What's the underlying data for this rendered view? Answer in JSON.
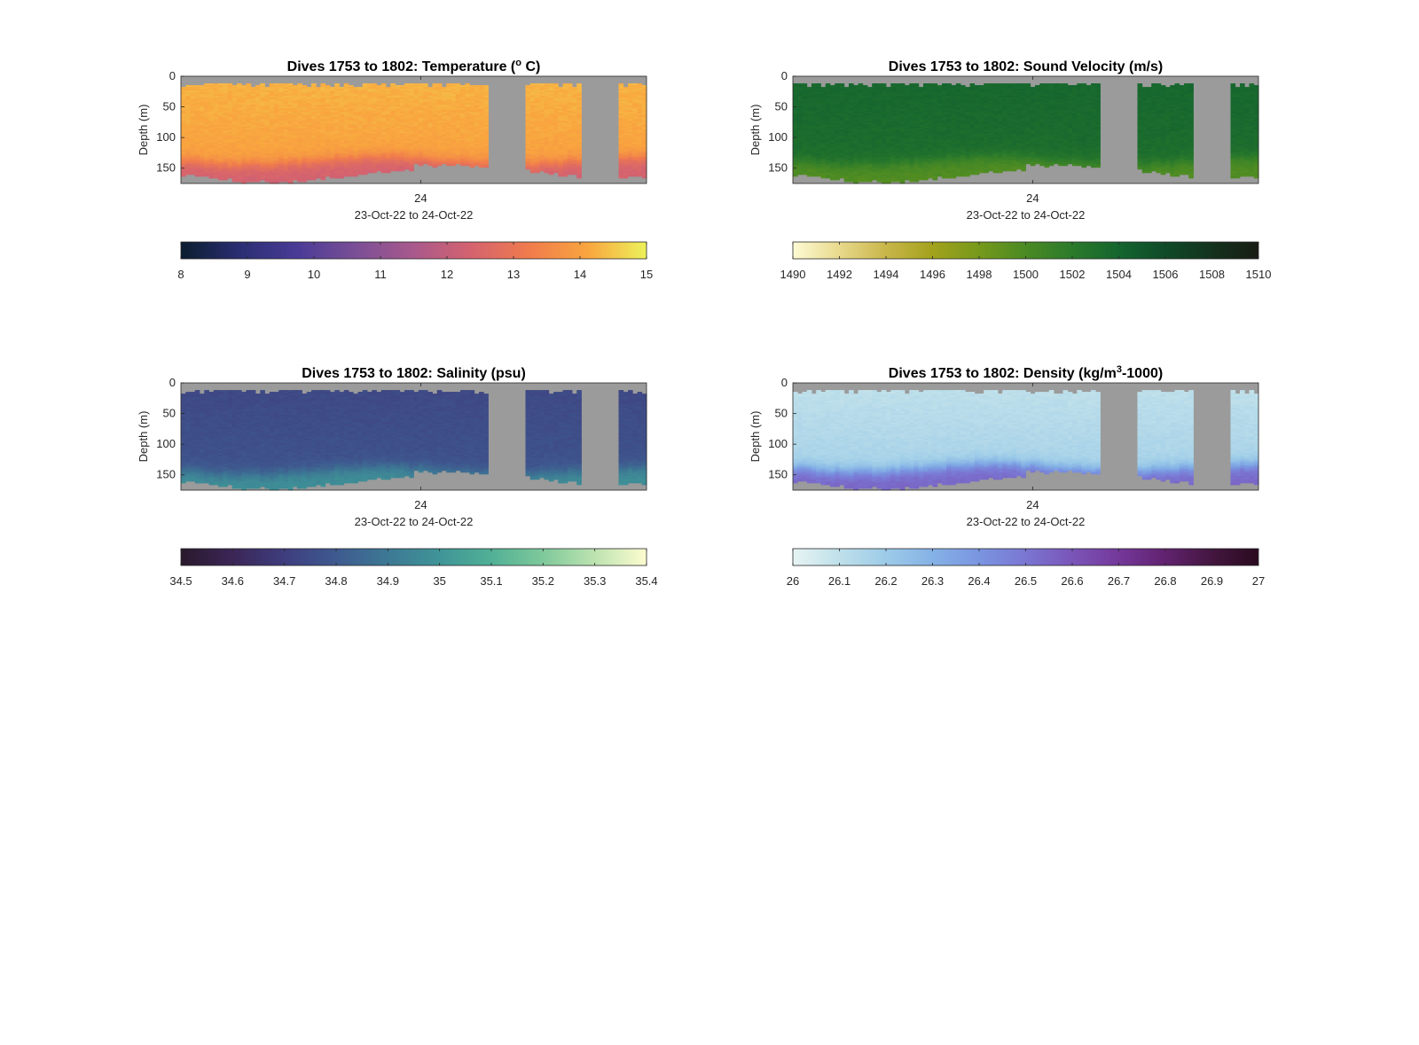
{
  "chart_data": [
    {
      "type": "heatmap",
      "title": "Dives 1753 to 1802: Temperature (° C)",
      "title_parts": [
        "Dives 1753 to 1802: Temperature (",
        "o",
        " C)"
      ],
      "ylabel": "Depth (m)",
      "xlabel": "23-Oct-22 to 24-Oct-22",
      "xtick_labels": [
        "24"
      ],
      "yticks": [
        0,
        50,
        100,
        150
      ],
      "ylim": [
        0,
        175
      ],
      "colorbar": {
        "min": 8,
        "max": 15,
        "ticks": [
          "8",
          "9",
          "10",
          "11",
          "12",
          "13",
          "14",
          "15"
        ],
        "colors": [
          "#0b1d2e",
          "#2a2e72",
          "#4a3b97",
          "#7a4f96",
          "#a9598c",
          "#d5636e",
          "#f07c4c",
          "#f9a63f",
          "#ecf25a"
        ]
      },
      "no_data_color": "#9b9b9b",
      "profile": {
        "surface_value": 14.3,
        "deep_value": 12.3,
        "thermocline_depth": 135
      },
      "gaps": [
        [
          0.66,
          0.74
        ],
        [
          0.86,
          0.94
        ]
      ]
    },
    {
      "type": "heatmap",
      "title": "Dives 1753 to 1802: Sound Velocity (m/s)",
      "title_parts": [
        "Dives 1753 to 1802: Sound Velocity (m/s)",
        "",
        ""
      ],
      "ylabel": "Depth (m)",
      "xlabel": "23-Oct-22 to 24-Oct-22",
      "xtick_labels": [
        "24"
      ],
      "yticks": [
        0,
        50,
        100,
        150
      ],
      "ylim": [
        0,
        175
      ],
      "colorbar": {
        "min": 1490,
        "max": 1510,
        "ticks": [
          "1490",
          "1492",
          "1494",
          "1496",
          "1498",
          "1500",
          "1502",
          "1504",
          "1506",
          "1508",
          "1510"
        ],
        "colors": [
          "#fdfbd4",
          "#e8d98c",
          "#c9b64a",
          "#a3a21c",
          "#76991b",
          "#4a8a24",
          "#2b7a2b",
          "#14652f",
          "#0f4a28",
          "#13321d",
          "#191c14"
        ]
      },
      "no_data_color": "#9b9b9b",
      "profile": {
        "surface_value": 1503.8,
        "deep_value": 1499.6,
        "thermocline_depth": 135
      },
      "gaps": [
        [
          0.66,
          0.74
        ],
        [
          0.86,
          0.94
        ]
      ]
    },
    {
      "type": "heatmap",
      "title": "Dives 1753 to 1802: Salinity (psu)",
      "title_parts": [
        "Dives 1753 to 1802: Salinity (psu)",
        "",
        ""
      ],
      "ylabel": "Depth (m)",
      "xlabel": "23-Oct-22 to 24-Oct-22",
      "xtick_labels": [
        "24"
      ],
      "yticks": [
        0,
        50,
        100,
        150
      ],
      "ylim": [
        0,
        175
      ],
      "colorbar": {
        "min": 34.5,
        "max": 35.4,
        "ticks": [
          "34.5",
          "34.6",
          "34.7",
          "34.8",
          "34.9",
          "35",
          "35.1",
          "35.2",
          "35.3",
          "35.4"
        ],
        "colors": [
          "#29192c",
          "#3b2656",
          "#3e3d7e",
          "#3e5a8f",
          "#3d7894",
          "#3f9597",
          "#51b096",
          "#7fc99b",
          "#bde3b0",
          "#fdfcd0"
        ]
      },
      "no_data_color": "#9b9b9b",
      "profile": {
        "surface_value": 34.74,
        "deep_value": 34.98,
        "thermocline_depth": 140
      },
      "gaps": [
        [
          0.66,
          0.74
        ],
        [
          0.86,
          0.94
        ]
      ]
    },
    {
      "type": "heatmap",
      "title": "Dives 1753 to 1802: Density (kg/m³-1000)",
      "title_parts": [
        "Dives 1753 to 1802: Density (kg/m",
        "3",
        "-1000)"
      ],
      "ylabel": "Depth (m)",
      "xlabel": "23-Oct-22 to 24-Oct-22",
      "xtick_labels": [
        "24"
      ],
      "yticks": [
        0,
        50,
        100,
        150
      ],
      "ylim": [
        0,
        175
      ],
      "colorbar": {
        "min": 26,
        "max": 27,
        "ticks": [
          "26",
          "26.1",
          "26.2",
          "26.3",
          "26.4",
          "26.5",
          "26.6",
          "26.7",
          "26.8",
          "26.9",
          "27"
        ],
        "colors": [
          "#e7f4f3",
          "#bfe0ea",
          "#9ccbe8",
          "#85b2e6",
          "#7a95e0",
          "#7a76d2",
          "#7a55b8",
          "#74389a",
          "#61226f",
          "#43163f",
          "#2a0a1f"
        ]
      },
      "no_data_color": "#9b9b9b",
      "profile": {
        "surface_value": 26.1,
        "deep_value": 26.55,
        "thermocline_depth": 135
      },
      "gaps": [
        [
          0.66,
          0.74
        ],
        [
          0.86,
          0.94
        ]
      ]
    }
  ]
}
